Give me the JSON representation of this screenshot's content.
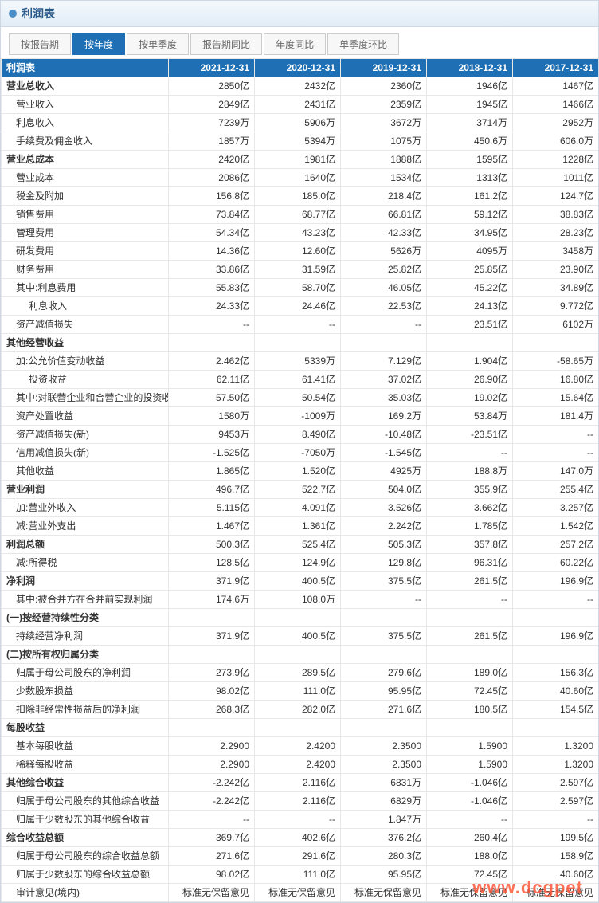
{
  "title": "利润表",
  "tabs": [
    "按报告期",
    "按年度",
    "按单季度",
    "报告期同比",
    "年度同比",
    "单季度环比"
  ],
  "activeTab": 1,
  "tableTitle": "利润表",
  "columns": [
    "2021-12-31",
    "2020-12-31",
    "2019-12-31",
    "2018-12-31",
    "2017-12-31"
  ],
  "rows": [
    {
      "l": "营业总收入",
      "s": 1,
      "v": [
        "2850亿",
        "2432亿",
        "2360亿",
        "1946亿",
        "1467亿"
      ]
    },
    {
      "l": "营业收入",
      "i": 1,
      "v": [
        "2849亿",
        "2431亿",
        "2359亿",
        "1945亿",
        "1466亿"
      ]
    },
    {
      "l": "利息收入",
      "i": 1,
      "v": [
        "7239万",
        "5906万",
        "3672万",
        "3714万",
        "2952万"
      ]
    },
    {
      "l": "手续费及佣金收入",
      "i": 1,
      "v": [
        "1857万",
        "5394万",
        "1075万",
        "450.6万",
        "606.0万"
      ]
    },
    {
      "l": "营业总成本",
      "s": 1,
      "v": [
        "2420亿",
        "1981亿",
        "1888亿",
        "1595亿",
        "1228亿"
      ]
    },
    {
      "l": "营业成本",
      "i": 1,
      "v": [
        "2086亿",
        "1640亿",
        "1534亿",
        "1313亿",
        "1011亿"
      ]
    },
    {
      "l": "税金及附加",
      "i": 1,
      "v": [
        "156.8亿",
        "185.0亿",
        "218.4亿",
        "161.2亿",
        "124.7亿"
      ]
    },
    {
      "l": "销售费用",
      "i": 1,
      "v": [
        "73.84亿",
        "68.77亿",
        "66.81亿",
        "59.12亿",
        "38.83亿"
      ]
    },
    {
      "l": "管理费用",
      "i": 1,
      "v": [
        "54.34亿",
        "43.23亿",
        "42.33亿",
        "34.95亿",
        "28.23亿"
      ]
    },
    {
      "l": "研发费用",
      "i": 1,
      "v": [
        "14.36亿",
        "12.60亿",
        "5626万",
        "4095万",
        "3458万"
      ]
    },
    {
      "l": "财务费用",
      "i": 1,
      "v": [
        "33.86亿",
        "31.59亿",
        "25.82亿",
        "25.85亿",
        "23.90亿"
      ]
    },
    {
      "l": "其中:利息费用",
      "i": 1,
      "v": [
        "55.83亿",
        "58.70亿",
        "46.05亿",
        "45.22亿",
        "34.89亿"
      ]
    },
    {
      "l": "利息收入",
      "i": 2,
      "v": [
        "24.33亿",
        "24.46亿",
        "22.53亿",
        "24.13亿",
        "9.772亿"
      ]
    },
    {
      "l": "资产减值损失",
      "i": 1,
      "v": [
        "--",
        "--",
        "--",
        "23.51亿",
        "6102万"
      ]
    },
    {
      "l": "其他经营收益",
      "s": 1,
      "v": [
        "",
        "",
        "",
        "",
        ""
      ]
    },
    {
      "l": "加:公允价值变动收益",
      "i": 1,
      "v": [
        "2.462亿",
        "5339万",
        "7.129亿",
        "1.904亿",
        "-58.65万"
      ]
    },
    {
      "l": "投资收益",
      "i": 2,
      "v": [
        "62.11亿",
        "61.41亿",
        "37.02亿",
        "26.90亿",
        "16.80亿"
      ]
    },
    {
      "l": "其中:对联营企业和合营企业的投资收益",
      "i": 1,
      "v": [
        "57.50亿",
        "50.54亿",
        "35.03亿",
        "19.02亿",
        "15.64亿"
      ]
    },
    {
      "l": "资产处置收益",
      "i": 1,
      "v": [
        "1580万",
        "-1009万",
        "169.2万",
        "53.84万",
        "181.4万"
      ]
    },
    {
      "l": "资产减值损失(新)",
      "i": 1,
      "v": [
        "9453万",
        "8.490亿",
        "-10.48亿",
        "-23.51亿",
        "--"
      ]
    },
    {
      "l": "信用减值损失(新)",
      "i": 1,
      "v": [
        "-1.525亿",
        "-7050万",
        "-1.545亿",
        "--",
        "--"
      ]
    },
    {
      "l": "其他收益",
      "i": 1,
      "v": [
        "1.865亿",
        "1.520亿",
        "4925万",
        "188.8万",
        "147.0万"
      ]
    },
    {
      "l": "营业利润",
      "s": 1,
      "v": [
        "496.7亿",
        "522.7亿",
        "504.0亿",
        "355.9亿",
        "255.4亿"
      ]
    },
    {
      "l": "加:营业外收入",
      "i": 1,
      "v": [
        "5.115亿",
        "4.091亿",
        "3.526亿",
        "3.662亿",
        "3.257亿"
      ]
    },
    {
      "l": "减:营业外支出",
      "i": 1,
      "v": [
        "1.467亿",
        "1.361亿",
        "2.242亿",
        "1.785亿",
        "1.542亿"
      ]
    },
    {
      "l": "利润总额",
      "s": 1,
      "v": [
        "500.3亿",
        "525.4亿",
        "505.3亿",
        "357.8亿",
        "257.2亿"
      ]
    },
    {
      "l": "减:所得税",
      "i": 1,
      "v": [
        "128.5亿",
        "124.9亿",
        "129.8亿",
        "96.31亿",
        "60.22亿"
      ]
    },
    {
      "l": "净利润",
      "s": 1,
      "v": [
        "371.9亿",
        "400.5亿",
        "375.5亿",
        "261.5亿",
        "196.9亿"
      ]
    },
    {
      "l": "其中:被合并方在合并前实现利润",
      "i": 1,
      "v": [
        "174.6万",
        "108.0万",
        "--",
        "--",
        "--"
      ]
    },
    {
      "l": "(一)按经营持续性分类",
      "s": 1,
      "v": [
        "",
        "",
        "",
        "",
        ""
      ]
    },
    {
      "l": "持续经营净利润",
      "i": 1,
      "v": [
        "371.9亿",
        "400.5亿",
        "375.5亿",
        "261.5亿",
        "196.9亿"
      ]
    },
    {
      "l": "(二)按所有权归属分类",
      "s": 1,
      "v": [
        "",
        "",
        "",
        "",
        ""
      ]
    },
    {
      "l": "归属于母公司股东的净利润",
      "i": 1,
      "v": [
        "273.9亿",
        "289.5亿",
        "279.6亿",
        "189.0亿",
        "156.3亿"
      ]
    },
    {
      "l": "少数股东损益",
      "i": 1,
      "v": [
        "98.02亿",
        "111.0亿",
        "95.95亿",
        "72.45亿",
        "40.60亿"
      ]
    },
    {
      "l": "扣除非经常性损益后的净利润",
      "i": 1,
      "v": [
        "268.3亿",
        "282.0亿",
        "271.6亿",
        "180.5亿",
        "154.5亿"
      ]
    },
    {
      "l": "每股收益",
      "s": 1,
      "v": [
        "",
        "",
        "",
        "",
        ""
      ]
    },
    {
      "l": "基本每股收益",
      "i": 1,
      "v": [
        "2.2900",
        "2.4200",
        "2.3500",
        "1.5900",
        "1.3200"
      ]
    },
    {
      "l": "稀释每股收益",
      "i": 1,
      "v": [
        "2.2900",
        "2.4200",
        "2.3500",
        "1.5900",
        "1.3200"
      ]
    },
    {
      "l": "其他综合收益",
      "s": 1,
      "v": [
        "-2.242亿",
        "2.116亿",
        "6831万",
        "-1.046亿",
        "2.597亿"
      ]
    },
    {
      "l": "归属于母公司股东的其他综合收益",
      "i": 1,
      "v": [
        "-2.242亿",
        "2.116亿",
        "6829万",
        "-1.046亿",
        "2.597亿"
      ]
    },
    {
      "l": "归属于少数股东的其他综合收益",
      "i": 1,
      "v": [
        "--",
        "--",
        "1.847万",
        "--",
        "--"
      ]
    },
    {
      "l": "综合收益总额",
      "s": 1,
      "v": [
        "369.7亿",
        "402.6亿",
        "376.2亿",
        "260.4亿",
        "199.5亿"
      ]
    },
    {
      "l": "归属于母公司股东的综合收益总额",
      "i": 1,
      "v": [
        "271.6亿",
        "291.6亿",
        "280.3亿",
        "188.0亿",
        "158.9亿"
      ]
    },
    {
      "l": "归属于少数股东的综合收益总额",
      "i": 1,
      "v": [
        "98.02亿",
        "111.0亿",
        "95.95亿",
        "72.45亿",
        "40.60亿"
      ]
    },
    {
      "l": "审计意见(境内)",
      "i": 1,
      "v": [
        "标准无保留意见",
        "标准无保留意见",
        "标准无保留意见",
        "标准无保留意见",
        "标准无保留意见"
      ]
    }
  ],
  "watermark": "www.d​cg​p​e​t"
}
